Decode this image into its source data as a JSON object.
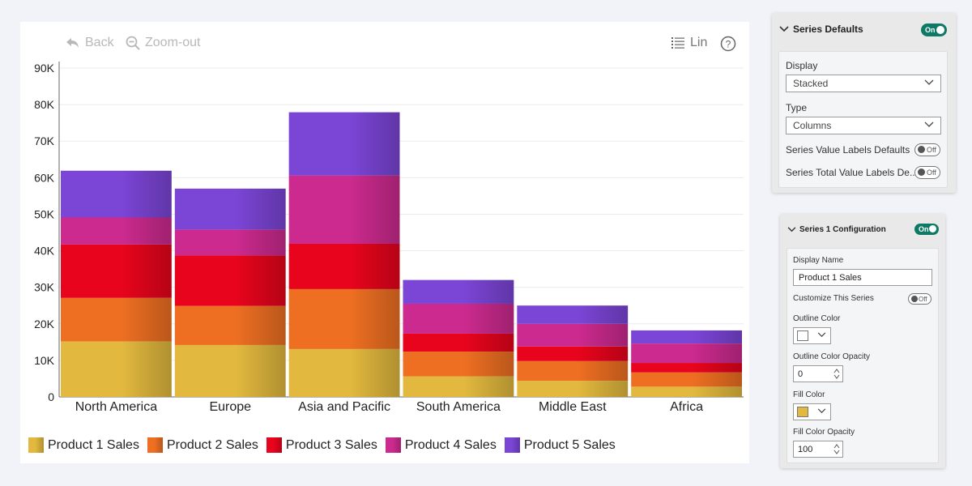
{
  "toolbar": {
    "back_label": "Back",
    "zoom_out_label": "Zoom-out",
    "scale_label": "Lin",
    "help_label": "?"
  },
  "chart_data": {
    "type": "bar",
    "stacked": true,
    "title": "",
    "xlabel": "",
    "ylabel": "",
    "ylim": [
      0,
      90000
    ],
    "yticks": [
      "0",
      "10K",
      "20K",
      "30K",
      "40K",
      "50K",
      "60K",
      "70K",
      "80K",
      "90K"
    ],
    "ytick_values": [
      0,
      10000,
      20000,
      30000,
      40000,
      50000,
      60000,
      70000,
      80000,
      90000
    ],
    "grid": true,
    "legend_position": "bottom-left",
    "categories": [
      "North America",
      "Europe",
      "Asia and Pacific",
      "South America",
      "Middle East",
      "Africa"
    ],
    "series": [
      {
        "name": "Product 1 Sales",
        "values": [
          15200,
          14200,
          13100,
          5600,
          4400,
          2800
        ],
        "color": "#e2b93e"
      },
      {
        "name": "Product 2 Sales",
        "values": [
          11900,
          10700,
          16400,
          6800,
          5400,
          3900
        ],
        "color": "#ee6f22"
      },
      {
        "name": "Product 3 Sales",
        "values": [
          14600,
          13800,
          12400,
          4900,
          4000,
          2600
        ],
        "color": "#e8041c"
      },
      {
        "name": "Product 4 Sales",
        "values": [
          7400,
          7100,
          18700,
          8200,
          6200,
          5300
        ],
        "color": "#cc2a8e"
      },
      {
        "name": "Product 5 Sales",
        "values": [
          12800,
          11200,
          17300,
          6500,
          5000,
          3600
        ],
        "color": "#7b45d6"
      }
    ]
  },
  "series_defaults": {
    "title": "Series Defaults",
    "toggle_label": "On",
    "display_label": "Display",
    "display_value": "Stacked",
    "type_label": "Type",
    "type_value": "Columns",
    "value_labels_label": "Series Value Labels Defaults",
    "value_labels_toggle": "Off",
    "total_labels_label": "Series Total Value Labels De...",
    "total_labels_toggle": "Off"
  },
  "series_config": {
    "title": "Series 1 Configuration",
    "toggle_label": "On",
    "display_name_label": "Display Name",
    "display_name_value": "Product 1 Sales",
    "customize_label": "Customize This Series",
    "customize_toggle": "Off",
    "outline_color_label": "Outline Color",
    "outline_color": "#ffffff",
    "outline_opacity_label": "Outline Color Opacity",
    "outline_opacity_value": "0",
    "fill_color_label": "Fill Color",
    "fill_color": "#e2b93e",
    "fill_opacity_label": "Fill Color Opacity",
    "fill_opacity_value": "100"
  }
}
